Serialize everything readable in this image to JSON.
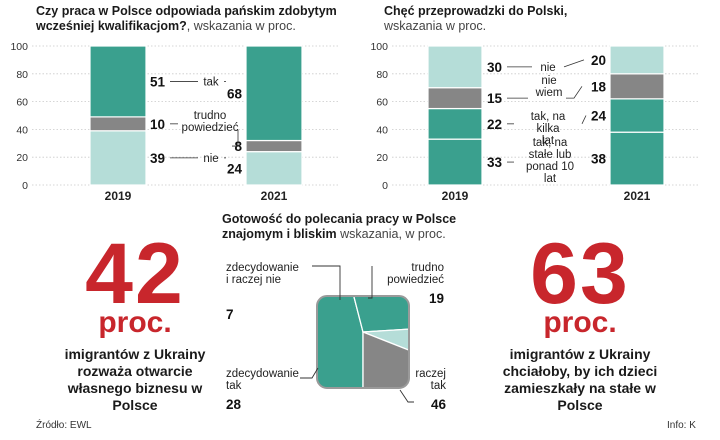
{
  "colors": {
    "teal": "#3aa08e",
    "light": "#b5ddd8",
    "gray": "#868686",
    "red": "#c8262c"
  },
  "chart_data": [
    {
      "type": "bar",
      "title": "Czy praca w Polsce odpowiada pańskim zdobytym wcześniej kwalifikacjom?",
      "subtitle": ", wskazania w proc.",
      "categories": [
        "2019",
        "2021"
      ],
      "ylim": [
        0,
        100
      ],
      "yticks": [
        "0",
        "20",
        "40",
        "60",
        "80",
        "100"
      ],
      "series": [
        {
          "name": "nie",
          "label": "nie",
          "values": [
            39,
            24
          ],
          "color": "light"
        },
        {
          "name": "trudno powiedzieć",
          "label": "trudno powiedzieć",
          "values": [
            10,
            8
          ],
          "color": "gray"
        },
        {
          "name": "tak",
          "label": "tak",
          "values": [
            51,
            68
          ],
          "color": "teal"
        }
      ]
    },
    {
      "type": "bar",
      "title": "Chęć przeprowadzki do Polski,",
      "subtitle": "wskazania w proc.",
      "categories": [
        "2019",
        "2021"
      ],
      "ylim": [
        0,
        100
      ],
      "yticks": [
        "0",
        "20",
        "40",
        "60",
        "80",
        "100"
      ],
      "series": [
        {
          "name": "tak, na stałe lub ponad 10 lat",
          "label": "tak, na stałe lub ponad 10 lat",
          "values": [
            33,
            38
          ],
          "color": "teal"
        },
        {
          "name": "tak, na kilka lat",
          "label": "tak, na kilka lat",
          "values": [
            22,
            24
          ],
          "color": "teal"
        },
        {
          "name": "nie wiem",
          "label": "nie wiem",
          "values": [
            15,
            18
          ],
          "color": "gray"
        },
        {
          "name": "nie",
          "label": "nie",
          "values": [
            30,
            20
          ],
          "color": "light"
        }
      ]
    },
    {
      "type": "pie",
      "title": "Gotowość do polecania pracy w Polsce znajomym i bliskim",
      "subtitle": " wskazania, w proc.",
      "slices": [
        {
          "name": "raczej tak",
          "label": "raczej tak",
          "value": 46,
          "color": "teal"
        },
        {
          "name": "zdecydowanie tak",
          "label": "zdecydowanie tak",
          "value": 28,
          "color": "teal"
        },
        {
          "name": "zdecydowanie i raczej nie",
          "label": "zdecydowanie i raczej nie",
          "value": 7,
          "color": "light"
        },
        {
          "name": "trudno powiedzieć",
          "label": "trudno powiedzieć",
          "value": 19,
          "color": "gray"
        }
      ]
    }
  ],
  "stats": {
    "left": {
      "number": "42",
      "unit": "proc.",
      "caption": "imigrantów z Ukrainy rozważa otwarcie własnego biznesu w Polsce"
    },
    "right": {
      "number": "63",
      "unit": "proc.",
      "caption": "imigrantów z Ukrainy chciałoby, by ich dzieci zamieszkały na stałe w Polsce"
    }
  },
  "footer": {
    "source": "Źródło: EWL",
    "info": "Info: K"
  }
}
